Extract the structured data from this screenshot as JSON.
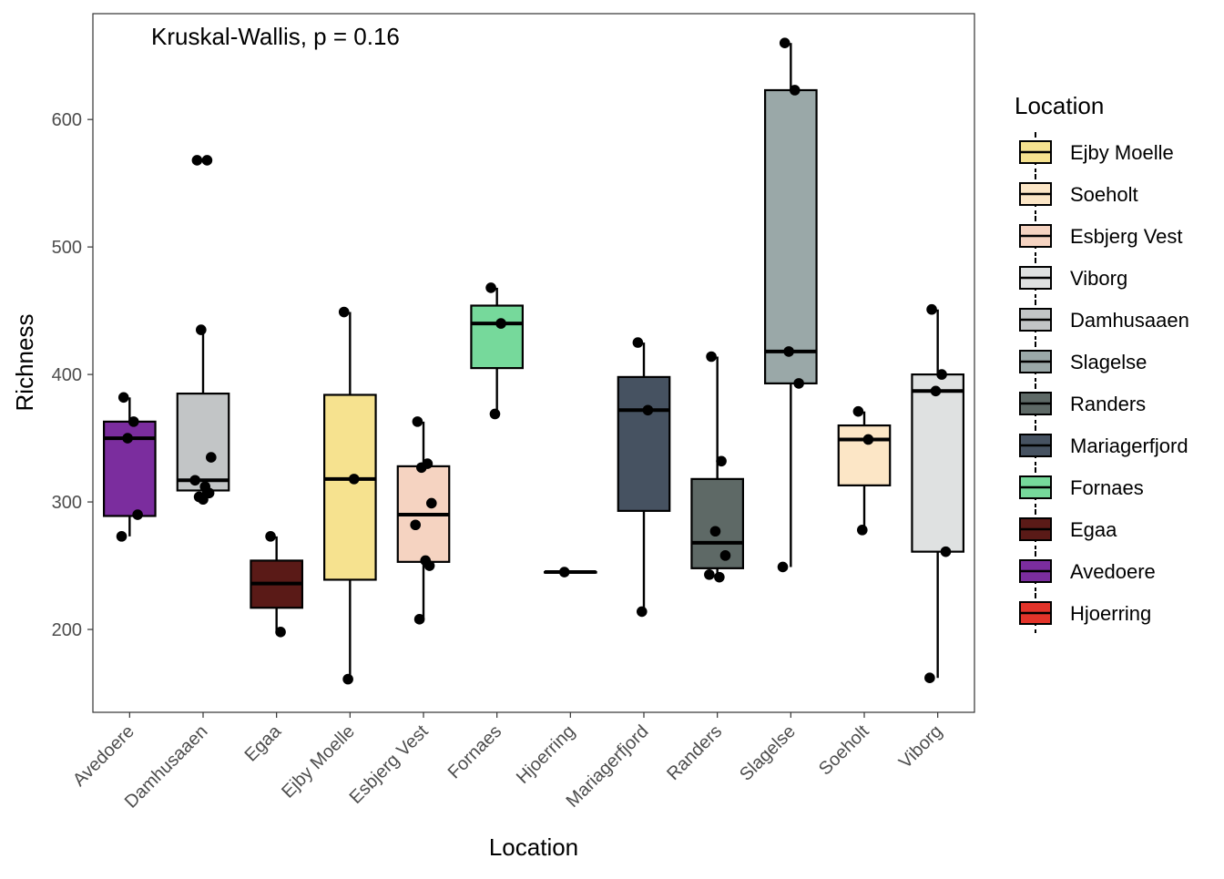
{
  "chart_data": {
    "type": "box",
    "annotation": "Kruskal-Wallis, p = 0.16",
    "xlabel": "Location",
    "ylabel": "Richness",
    "ylim": [
      135,
      683
    ],
    "yticks": [
      200,
      300,
      400,
      500,
      600
    ],
    "grid": false,
    "categories": [
      "Avedoere",
      "Damhusaaen",
      "Egaa",
      "Ejby Moelle",
      "Esbjerg Vest",
      "Fornaes",
      "Hjoerring",
      "Mariagerfjord",
      "Randers",
      "Slagelse",
      "Soeholt",
      "Viborg"
    ],
    "boxes": [
      {
        "category": "Avedoere",
        "fill": "#7b2d9e",
        "min": 273,
        "q1": 289,
        "median": 350,
        "q3": 363,
        "max": 382,
        "points": [
          382,
          363,
          350,
          290,
          273
        ]
      },
      {
        "category": "Damhusaaen",
        "fill": "#c2c5c6",
        "min": 302,
        "q1": 309,
        "median": 317,
        "q3": 385,
        "max": 435,
        "points": [
          568,
          568,
          435,
          335,
          317,
          312,
          307,
          304,
          302
        ]
      },
      {
        "category": "Egaa",
        "fill": "#5a1a17",
        "min": 198,
        "q1": 217,
        "median": 236,
        "q3": 254,
        "max": 273,
        "points": [
          273,
          198
        ]
      },
      {
        "category": "Ejby Moelle",
        "fill": "#f6e28f",
        "min": 161,
        "q1": 239,
        "median": 318,
        "q3": 384,
        "max": 449,
        "points": [
          449,
          318,
          161
        ]
      },
      {
        "category": "Esbjerg Vest",
        "fill": "#f5d3c1",
        "min": 208,
        "q1": 253,
        "median": 290,
        "q3": 328,
        "max": 363,
        "points": [
          363,
          330,
          327,
          299,
          282,
          254,
          250,
          208
        ]
      },
      {
        "category": "Fornaes",
        "fill": "#76d99b",
        "min": 369,
        "q1": 405,
        "median": 440,
        "q3": 454,
        "max": 468,
        "points": [
          468,
          440,
          369
        ]
      },
      {
        "category": "Hjoerring",
        "fill": "#e3342a",
        "min": 245,
        "q1": 245,
        "median": 245,
        "q3": 245,
        "max": 245,
        "points": [
          245
        ]
      },
      {
        "category": "Mariagerfjord",
        "fill": "#465261",
        "min": 214,
        "q1": 293,
        "median": 372,
        "q3": 398,
        "max": 425,
        "points": [
          425,
          372,
          214
        ]
      },
      {
        "category": "Randers",
        "fill": "#5e6966",
        "min": 241,
        "q1": 248,
        "median": 268,
        "q3": 318,
        "max": 414,
        "points": [
          414,
          332,
          277,
          258,
          243,
          241
        ]
      },
      {
        "category": "Slagelse",
        "fill": "#9aa8a8",
        "min": 249,
        "q1": 393,
        "median": 418,
        "q3": 623,
        "max": 660,
        "points": [
          660,
          623,
          418,
          393,
          249
        ]
      },
      {
        "category": "Soeholt",
        "fill": "#fce6c6",
        "min": 278,
        "q1": 313,
        "median": 349,
        "q3": 360,
        "max": 371,
        "points": [
          371,
          349,
          278
        ]
      },
      {
        "category": "Viborg",
        "fill": "#dfe1e1",
        "min": 162,
        "q1": 261,
        "median": 387,
        "q3": 400,
        "max": 451,
        "points": [
          451,
          400,
          387,
          261,
          162
        ]
      }
    ],
    "legend": {
      "title": "Location",
      "placement": "right",
      "items": [
        {
          "label": "Ejby Moelle",
          "color": "#f6e28f"
        },
        {
          "label": "Soeholt",
          "color": "#fce6c6"
        },
        {
          "label": "Esbjerg Vest",
          "color": "#f5d3c1"
        },
        {
          "label": "Viborg",
          "color": "#dfe1e1"
        },
        {
          "label": "Damhusaaen",
          "color": "#c2c5c6"
        },
        {
          "label": "Slagelse",
          "color": "#9aa8a8"
        },
        {
          "label": "Randers",
          "color": "#5e6966"
        },
        {
          "label": "Mariagerfjord",
          "color": "#465261"
        },
        {
          "label": "Fornaes",
          "color": "#76d99b"
        },
        {
          "label": "Egaa",
          "color": "#5a1a17"
        },
        {
          "label": "Avedoere",
          "color": "#7b2d9e"
        },
        {
          "label": "Hjoerring",
          "color": "#e3342a"
        }
      ]
    }
  }
}
